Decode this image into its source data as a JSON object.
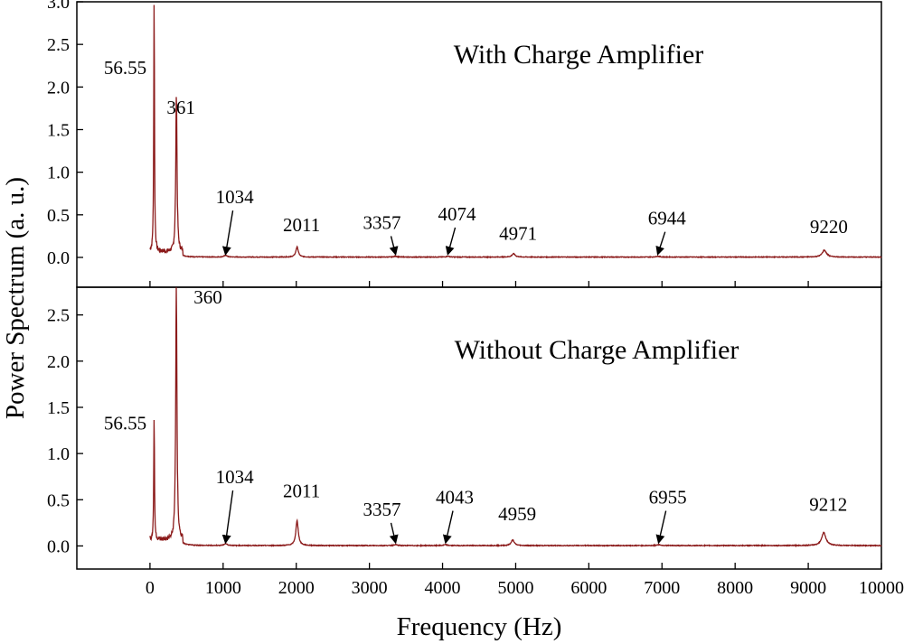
{
  "chart_data": {
    "type": "line",
    "xlabel": "Frequency (Hz)",
    "ylabel": "Power Spectrum (a. u.)",
    "xlim": [
      -1000,
      10000
    ],
    "x_ticks": [
      0,
      1000,
      2000,
      3000,
      4000,
      5000,
      6000,
      7000,
      8000,
      9000,
      10000
    ],
    "x_tick_labels": [
      "0",
      "1000",
      "2000",
      "3000",
      "4000",
      "5000",
      "6000",
      "7000",
      "8000",
      "9000",
      "10000"
    ],
    "grid": false,
    "line_color": "#8b1a1a",
    "panels": [
      {
        "title": "With Charge Amplifier",
        "ylim": [
          -0.35,
          3.0
        ],
        "y_ticks": [
          0,
          0.5,
          1.0,
          1.5,
          2.0,
          2.5,
          3.0
        ],
        "y_tick_labels": [
          "0.0",
          "0.5",
          "1.0",
          "1.5",
          "2.0",
          "2.5",
          "3.0"
        ],
        "baseline": 0.0,
        "peaks": [
          {
            "x": 56.55,
            "y": 2.92,
            "width": 6
          },
          {
            "x": 361,
            "y": 1.86,
            "width": 10
          },
          {
            "x": 1034,
            "y": 0.02,
            "width": 25
          },
          {
            "x": 2011,
            "y": 0.12,
            "width": 20
          },
          {
            "x": 3357,
            "y": 0.01,
            "width": 25
          },
          {
            "x": 4074,
            "y": 0.01,
            "width": 25
          },
          {
            "x": 4971,
            "y": 0.04,
            "width": 25
          },
          {
            "x": 6944,
            "y": 0.01,
            "width": 30
          },
          {
            "x": 9220,
            "y": 0.08,
            "width": 35
          }
        ],
        "labels": [
          {
            "text": "56.55",
            "x": 56.55,
            "y": 2.3,
            "arrow": false
          },
          {
            "text": "361",
            "x": 361,
            "y": 1.6,
            "arrow": false
          },
          {
            "text": "1034",
            "x": 1034,
            "y": 0.55,
            "arrow": true,
            "target_y": 0.02
          },
          {
            "text": "2011",
            "x": 2011,
            "y": 0.22,
            "arrow": false
          },
          {
            "text": "3357",
            "x": 3357,
            "y": 0.25,
            "arrow": true,
            "target_y": 0.02
          },
          {
            "text": "4074",
            "x": 4074,
            "y": 0.35,
            "arrow": true,
            "target_y": 0.02
          },
          {
            "text": "4971",
            "x": 4971,
            "y": 0.12,
            "arrow": false
          },
          {
            "text": "6944",
            "x": 6944,
            "y": 0.3,
            "arrow": true,
            "target_y": 0.02
          },
          {
            "text": "9220",
            "x": 9220,
            "y": 0.2,
            "arrow": false
          }
        ]
      },
      {
        "title": "Without Charge Amplifier",
        "ylim": [
          -0.25,
          2.8
        ],
        "y_ticks": [
          0,
          0.5,
          1.0,
          1.5,
          2.0,
          2.5
        ],
        "y_tick_labels": [
          "0.0",
          "0.5",
          "1.0",
          "1.5",
          "2.0",
          "2.5"
        ],
        "baseline": 0.0,
        "peaks": [
          {
            "x": 56.55,
            "y": 1.32,
            "width": 6
          },
          {
            "x": 360,
            "y": 2.72,
            "width": 10
          },
          {
            "x": 1034,
            "y": 0.02,
            "width": 25
          },
          {
            "x": 2011,
            "y": 0.27,
            "width": 20
          },
          {
            "x": 3357,
            "y": 0.01,
            "width": 25
          },
          {
            "x": 4043,
            "y": 0.01,
            "width": 25
          },
          {
            "x": 4959,
            "y": 0.06,
            "width": 25
          },
          {
            "x": 6955,
            "y": 0.01,
            "width": 30
          },
          {
            "x": 9212,
            "y": 0.14,
            "width": 35
          }
        ],
        "labels": [
          {
            "text": "360",
            "x": 360,
            "y": 2.72,
            "arrow": false
          },
          {
            "text": "56.55",
            "x": 56.55,
            "y": 1.32,
            "arrow": false
          },
          {
            "text": "1034",
            "x": 1034,
            "y": 0.6,
            "arrow": true,
            "target_y": 0.02
          },
          {
            "text": "2011",
            "x": 2011,
            "y": 0.45,
            "arrow": false
          },
          {
            "text": "3357",
            "x": 3357,
            "y": 0.25,
            "arrow": true,
            "target_y": 0.02
          },
          {
            "text": "4043",
            "x": 4043,
            "y": 0.38,
            "arrow": true,
            "target_y": 0.02
          },
          {
            "text": "4959",
            "x": 4959,
            "y": 0.2,
            "arrow": false
          },
          {
            "text": "6955",
            "x": 6955,
            "y": 0.38,
            "arrow": true,
            "target_y": 0.02
          },
          {
            "text": "9212",
            "x": 9212,
            "y": 0.3,
            "arrow": false
          }
        ]
      }
    ]
  }
}
